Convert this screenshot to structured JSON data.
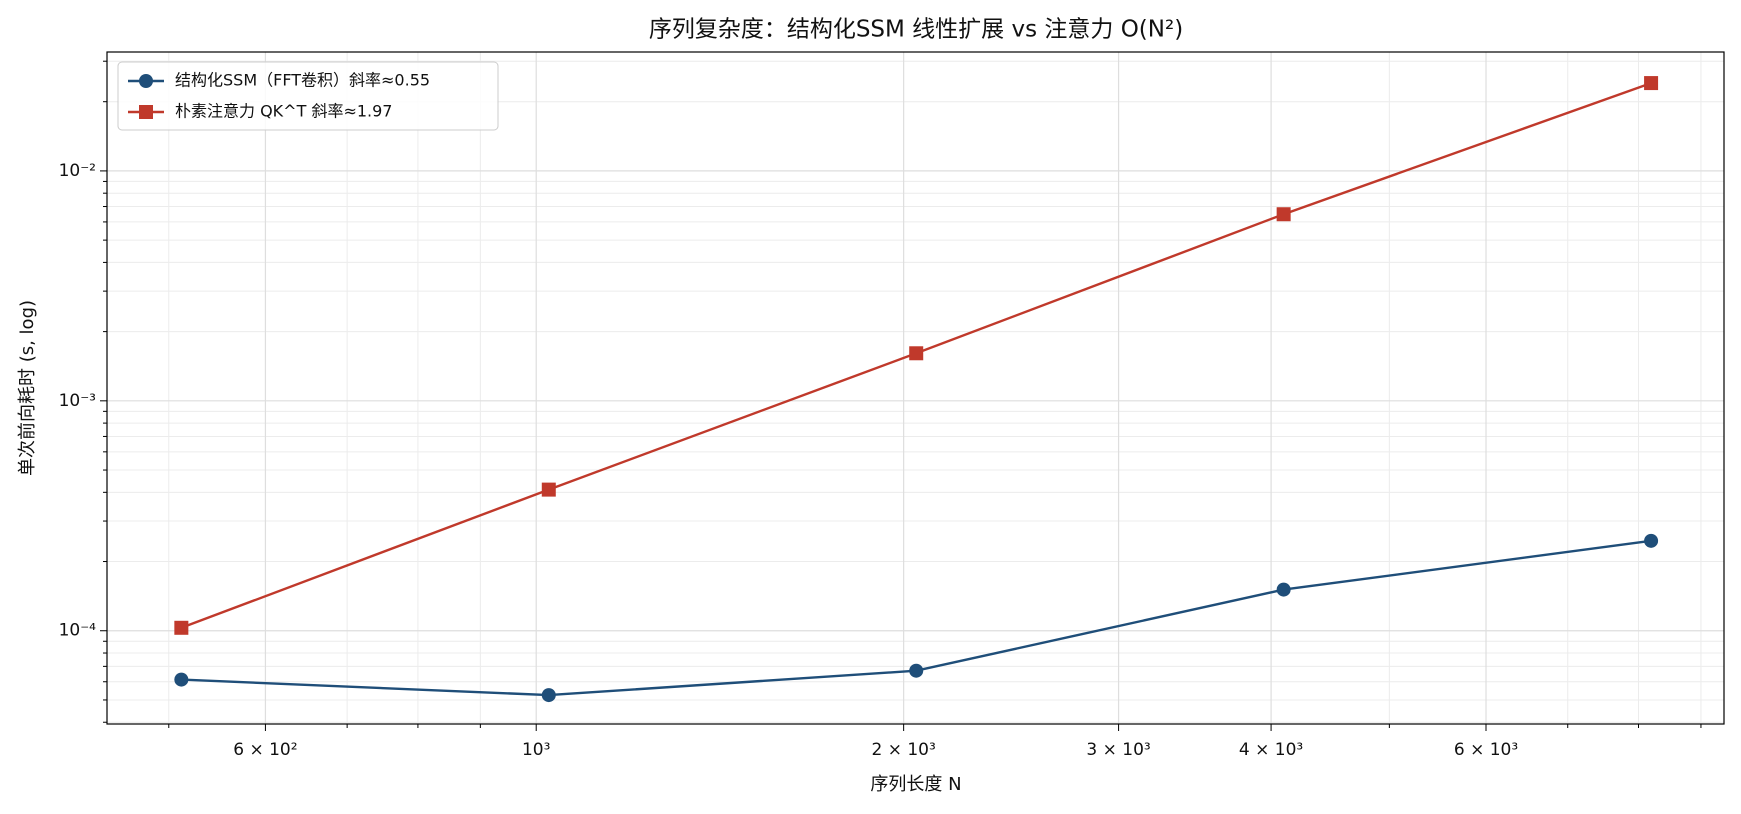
{
  "chart_data": {
    "type": "line",
    "title": "序列复杂度：结构化SSM 线性扩展 vs 注意力 O(N²)",
    "xlabel": "序列长度 N",
    "ylabel": "单次前向耗时 (s, log)",
    "x": [
      512,
      1024,
      2048,
      4096,
      8192
    ],
    "series": [
      {
        "name": "结构化SSM（FFT卷积）斜率≈0.55",
        "color": "#1f4e79",
        "marker": "circle",
        "values": [
          6.13e-05,
          5.25e-05,
          6.7e-05,
          0.000151,
          0.000246
        ]
      },
      {
        "name": "朴素注意力 QK^T 斜率≈1.97",
        "color": "#c0392b",
        "marker": "square",
        "values": [
          0.000103,
          0.000411,
          0.00161,
          0.00648,
          0.0241
        ]
      }
    ],
    "xscale": "log",
    "yscale": "log",
    "xlim": [
      445,
      9400
    ],
    "ylim": [
      3.93e-05,
      0.0329
    ],
    "xticks": [
      {
        "value": 600,
        "label": "6 × 10²"
      },
      {
        "value": 1000,
        "label": "10³"
      },
      {
        "value": 2000,
        "label": "2 × 10³"
      },
      {
        "value": 3000,
        "label": "3 × 10³"
      },
      {
        "value": 4000,
        "label": "4 × 10³"
      },
      {
        "value": 6000,
        "label": "6 × 10³"
      }
    ],
    "xminorticks": [
      500,
      700,
      800,
      900,
      5000,
      7000,
      8000,
      9000
    ],
    "yticks": [
      {
        "value": 0.0001,
        "label": "10⁻⁴"
      },
      {
        "value": 0.001,
        "label": "10⁻³"
      },
      {
        "value": 0.01,
        "label": "10⁻²"
      }
    ],
    "yminorticks": [
      4e-05,
      5e-05,
      6e-05,
      7e-05,
      8e-05,
      9e-05,
      0.0002,
      0.0003,
      0.0004,
      0.0005,
      0.0006,
      0.0007,
      0.0008,
      0.0009,
      0.002,
      0.003,
      0.004,
      0.005,
      0.006,
      0.007,
      0.008,
      0.009,
      0.02,
      0.03
    ],
    "grid": true,
    "legend": "upper left"
  }
}
